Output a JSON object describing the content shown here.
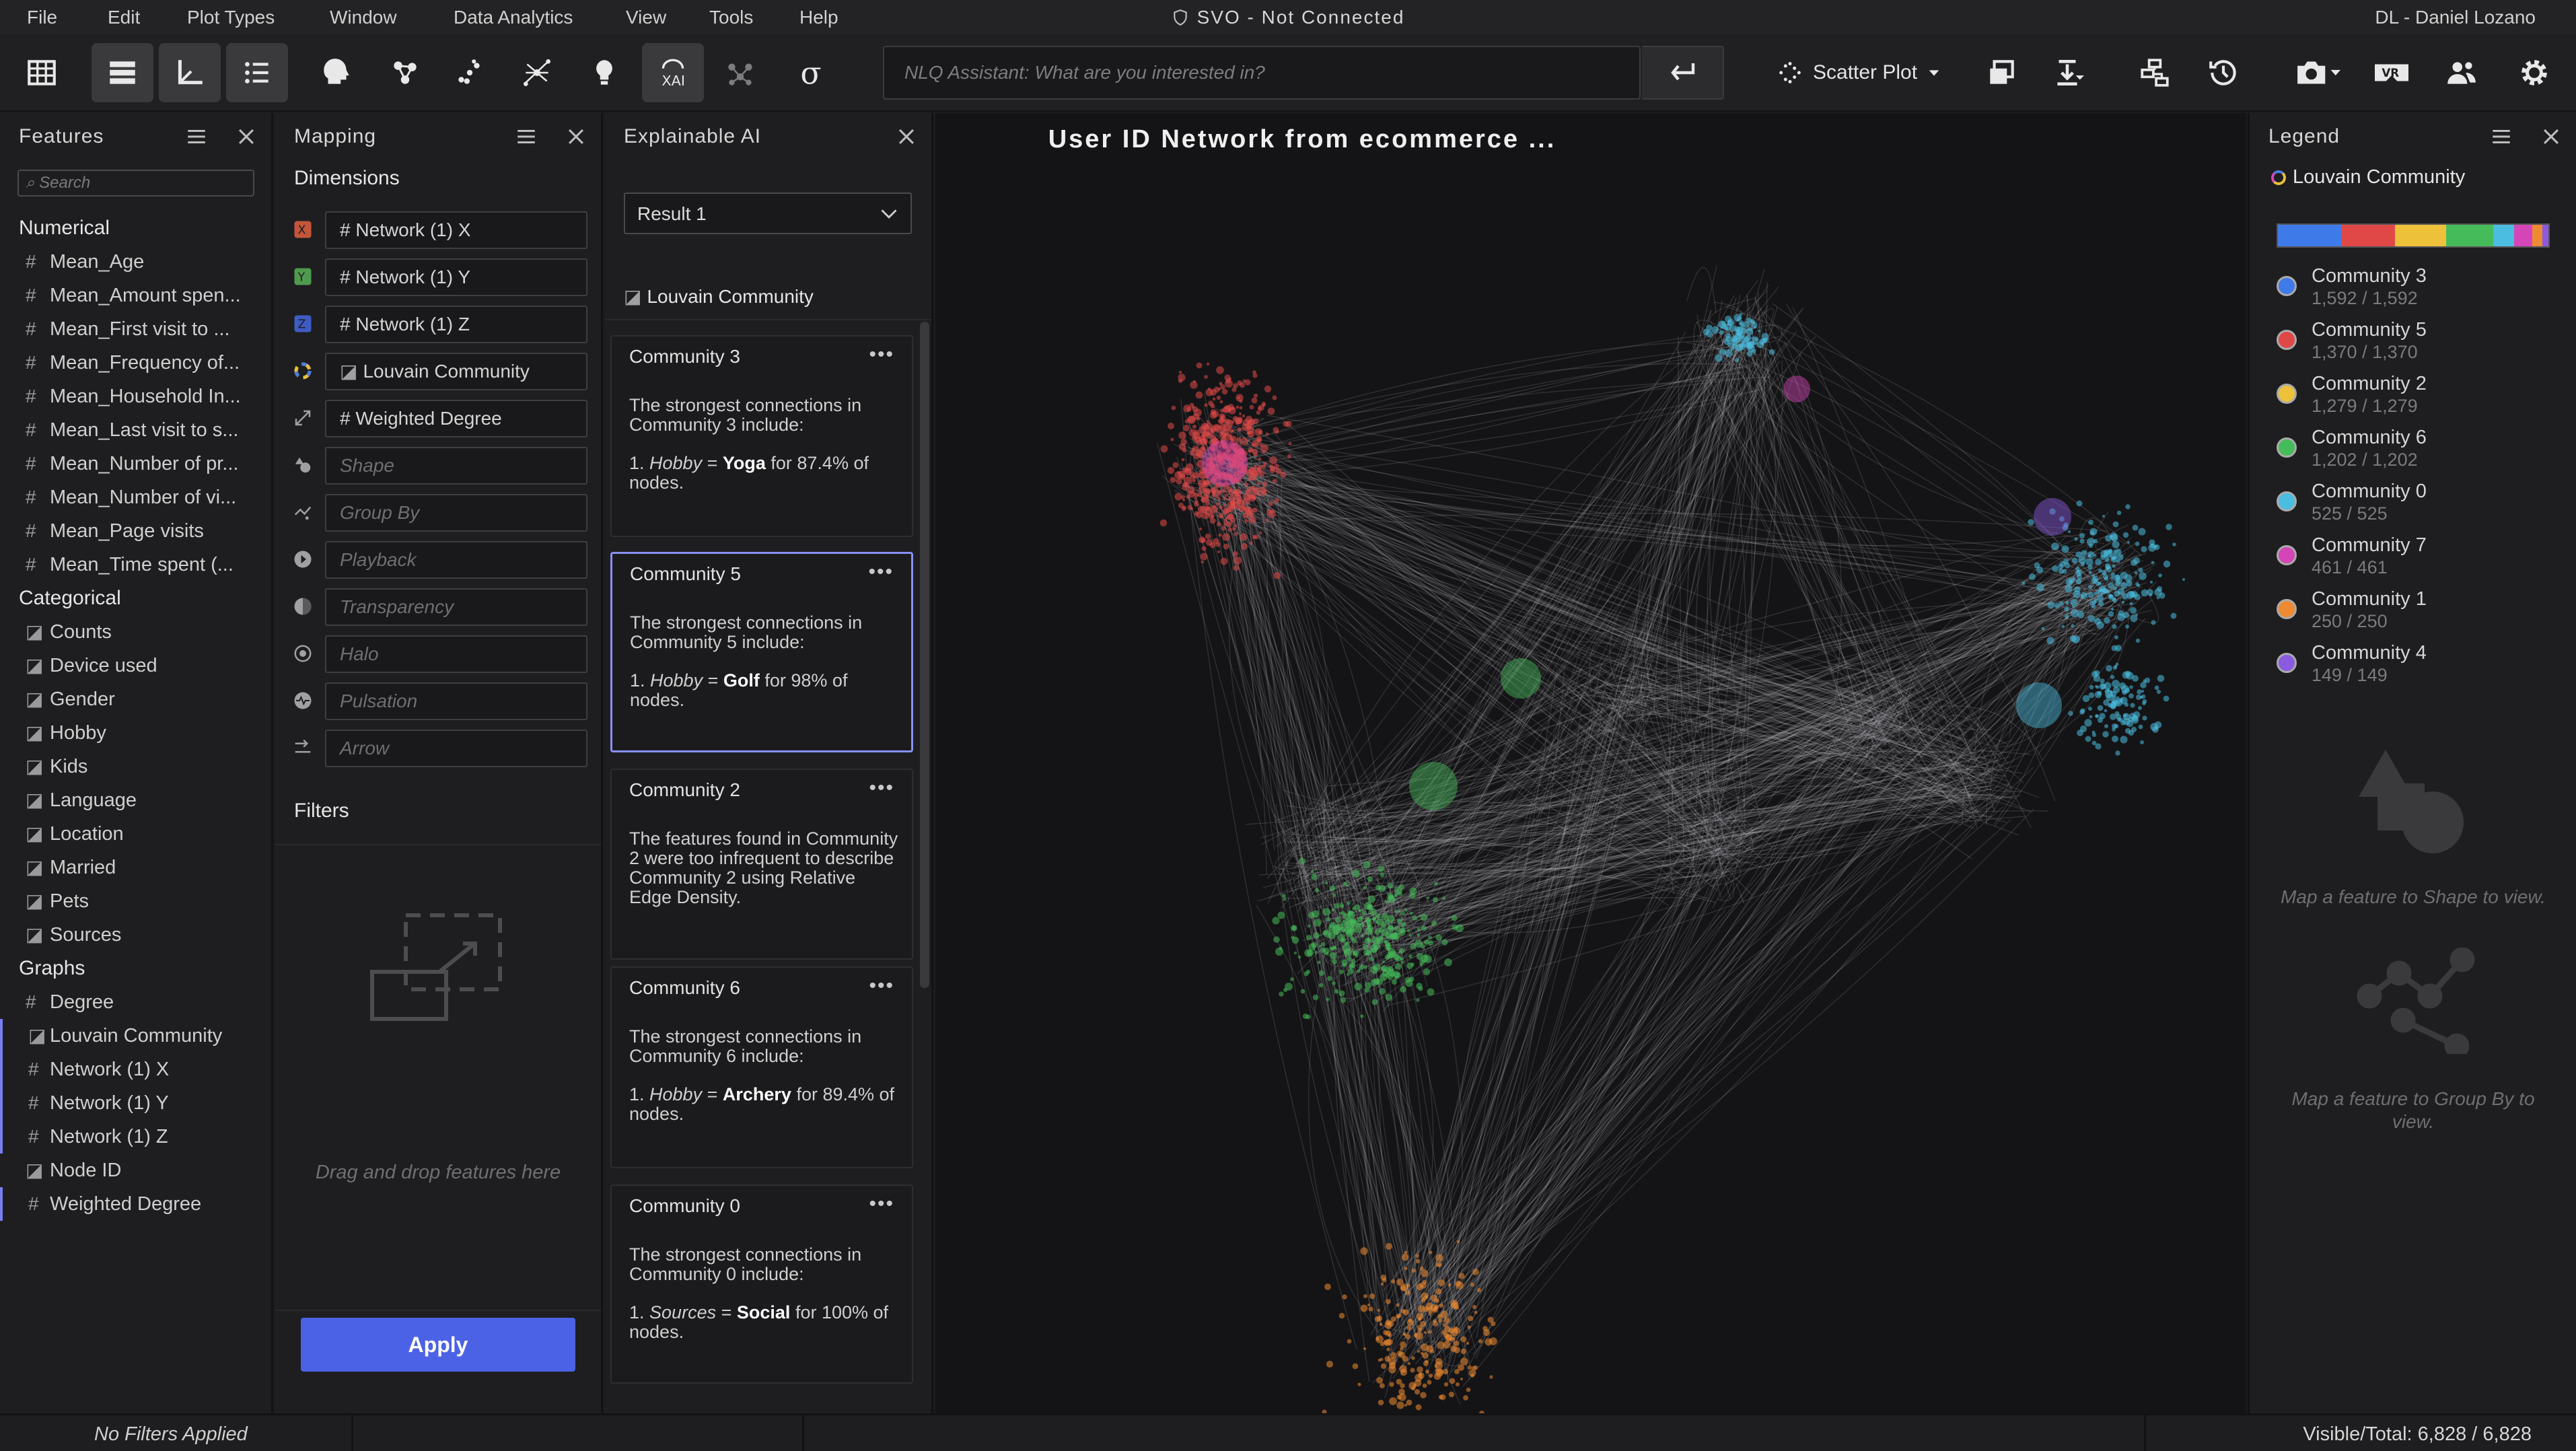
{
  "menubar": {
    "items": [
      "File",
      "Edit",
      "Plot Types",
      "Window",
      "Data Analytics",
      "View",
      "Tools",
      "Help"
    ],
    "title": "SVO - Not Connected",
    "user": "DL - Daniel Lozano"
  },
  "toolbar": {
    "nlq_placeholder": "NLQ Assistant: What are you interested in?",
    "plot_type": "Scatter Plot",
    "icons": [
      "table-icon",
      "list-view-icon",
      "axes-icon",
      "bullet-list-icon",
      "head-brain-icon",
      "network-icon",
      "scatter-dots-icon",
      "network-graph-icon",
      "lightbulb-icon",
      "xai-icon",
      "molecule-icon",
      "sigma-icon"
    ]
  },
  "features": {
    "title": "Features",
    "search_placeholder": "Search",
    "numerical_title": "Numerical",
    "numerical": [
      "Mean_Age",
      "Mean_Amount spen...",
      "Mean_First visit to ...",
      "Mean_Frequency of...",
      "Mean_Household In...",
      "Mean_Last visit to s...",
      "Mean_Number of pr...",
      "Mean_Number of vi...",
      "Mean_Page visits",
      "Mean_Time spent (..."
    ],
    "categorical_title": "Categorical",
    "categorical": [
      "Counts",
      "Device used",
      "Gender",
      "Hobby",
      "Kids",
      "Language",
      "Location",
      "Married",
      "Pets",
      "Sources"
    ],
    "graphs_title": "Graphs",
    "graphs": [
      {
        "label": "Degree",
        "icon": "#",
        "selected": false
      },
      {
        "label": "Louvain Community",
        "icon": "tag",
        "selected": true
      },
      {
        "label": "Network (1) X",
        "icon": "#",
        "selected": true
      },
      {
        "label": "Network (1) Y",
        "icon": "#",
        "selected": true
      },
      {
        "label": "Network (1) Z",
        "icon": "#",
        "selected": true
      },
      {
        "label": "Node ID",
        "icon": "tag",
        "selected": false
      },
      {
        "label": "Weighted Degree",
        "icon": "#",
        "selected": true
      }
    ]
  },
  "mapping": {
    "title": "Mapping",
    "dimensions_title": "Dimensions",
    "dims": [
      {
        "label": "# Network (1) X",
        "placeholder": false
      },
      {
        "label": "# Network (1) Y",
        "placeholder": false
      },
      {
        "label": "# Network (1) Z",
        "placeholder": false
      },
      {
        "label": "Louvain Community",
        "placeholder": false
      },
      {
        "label": "# Weighted Degree",
        "placeholder": false
      },
      {
        "label": "Shape",
        "placeholder": true
      },
      {
        "label": "Group By",
        "placeholder": true
      },
      {
        "label": "Playback",
        "placeholder": true
      },
      {
        "label": "Transparency",
        "placeholder": true
      },
      {
        "label": "Halo",
        "placeholder": true
      },
      {
        "label": "Pulsation",
        "placeholder": true
      },
      {
        "label": "Arrow",
        "placeholder": true
      }
    ],
    "filters_title": "Filters",
    "drop_hint": "Drag and drop features here",
    "apply_label": "Apply"
  },
  "xai": {
    "title": "Explainable AI",
    "result": "Result 1",
    "feature": "Louvain Community",
    "cards": [
      {
        "title": "Community 3",
        "pre": "The strongest connections in Community 3 include:",
        "feat": "Hobby",
        "val": "Yoga",
        "post": "for 87.4% of nodes.",
        "selected": false
      },
      {
        "title": "Community 5",
        "pre": "The strongest connections in Community 5 include:",
        "feat": "Hobby",
        "val": "Golf",
        "post": "for 98% of nodes.",
        "selected": true
      },
      {
        "title": "Community 2",
        "pre": "The features found in Community 2 were too infrequent to describe Community 2 using Relative Edge Density.",
        "feat": "",
        "val": "",
        "post": "",
        "selected": false
      },
      {
        "title": "Community 6",
        "pre": "The strongest connections in Community 6 include:",
        "feat": "Hobby",
        "val": "Archery",
        "post": "for 89.4% of nodes.",
        "selected": false
      },
      {
        "title": "Community 0",
        "pre": "The strongest connections in Community 0 include:",
        "feat": "Sources",
        "val": "Social",
        "post": "for 100% of nodes.",
        "selected": false
      }
    ]
  },
  "plot": {
    "title": "User ID Network from ecommerce ..."
  },
  "legend": {
    "title": "Legend",
    "feature": "Louvain Community",
    "items": [
      {
        "name": "Community 3",
        "count": "1,592 / 1,592",
        "color": "#3f7be8"
      },
      {
        "name": "Community 5",
        "count": "1,370 / 1,370",
        "color": "#e04848"
      },
      {
        "name": "Community 2",
        "count": "1,279 / 1,279",
        "color": "#eec13a"
      },
      {
        "name": "Community 6",
        "count": "1,202 / 1,202",
        "color": "#46bb5a"
      },
      {
        "name": "Community 0",
        "count": "525 / 525",
        "color": "#4bbde0"
      },
      {
        "name": "Community 7",
        "count": "461 / 461",
        "color": "#d446b8"
      },
      {
        "name": "Community 1",
        "count": "250 / 250",
        "color": "#ee8a32"
      },
      {
        "name": "Community 4",
        "count": "149 / 149",
        "color": "#8b5ae0"
      }
    ],
    "shape_hint": "Map a feature to Shape to view.",
    "group_hint": "Map a feature to Group By to view."
  },
  "status": {
    "filters": "No Filters Applied",
    "visible": "Visible/Total: 6,828 / 6,828"
  }
}
